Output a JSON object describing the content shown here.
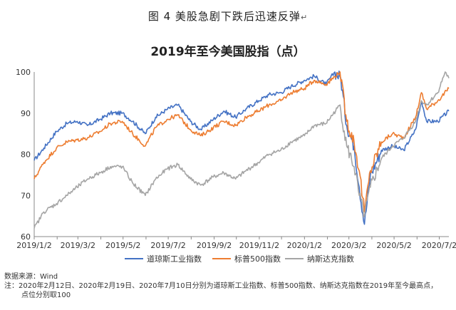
{
  "figure": {
    "title": "图 4 美股急剧下跌后迅速反弹",
    "title_mark": "↵"
  },
  "chart_data": {
    "type": "line",
    "title": "2019年至今美国股指（点）",
    "xlabel": "",
    "ylabel": "",
    "ylim": [
      60,
      100
    ],
    "yticks": [
      60,
      70,
      80,
      90,
      100
    ],
    "grid": false,
    "legend_position": "bottom",
    "x_ticks": [
      "2019/1/2",
      "2019/3/2",
      "2019/5/2",
      "2019/7/2",
      "2019/9/2",
      "2019/11/2",
      "2020/1/2",
      "2020/3/2",
      "2020/5/2",
      "2020/7/2"
    ],
    "x_months": [
      "2019/1",
      "2019/2",
      "2019/3",
      "2019/4",
      "2019/5",
      "2019/6",
      "2019/7",
      "2019/8",
      "2019/9",
      "2019/10",
      "2019/11",
      "2019/12",
      "2020/1",
      "2020/2",
      "2020/3",
      "2020/4",
      "2020/5",
      "2020/6",
      "2020/7"
    ],
    "series": [
      {
        "name": "道琼斯工业指数",
        "color": "#4472C4",
        "points": [
          [
            "2019-01-02",
            78.5
          ],
          [
            "2019-01-15",
            81.5
          ],
          [
            "2019-02-01",
            85.5
          ],
          [
            "2019-02-15",
            87.5
          ],
          [
            "2019-03-01",
            88
          ],
          [
            "2019-03-15",
            87
          ],
          [
            "2019-04-01",
            88.5
          ],
          [
            "2019-04-15",
            90
          ],
          [
            "2019-05-01",
            90
          ],
          [
            "2019-05-15",
            88
          ],
          [
            "2019-06-01",
            85
          ],
          [
            "2019-06-15",
            89
          ],
          [
            "2019-07-01",
            91
          ],
          [
            "2019-07-15",
            92
          ],
          [
            "2019-08-01",
            88
          ],
          [
            "2019-08-15",
            86
          ],
          [
            "2019-09-01",
            88.5
          ],
          [
            "2019-09-15",
            90.5
          ],
          [
            "2019-10-01",
            89
          ],
          [
            "2019-10-15",
            91
          ],
          [
            "2019-11-01",
            93
          ],
          [
            "2019-11-15",
            94.5
          ],
          [
            "2019-12-01",
            95
          ],
          [
            "2019-12-15",
            96.5
          ],
          [
            "2020-01-02",
            98
          ],
          [
            "2020-01-15",
            99
          ],
          [
            "2020-01-31",
            97
          ],
          [
            "2020-02-12",
            100
          ],
          [
            "2020-02-20",
            98.5
          ],
          [
            "2020-02-28",
            87
          ],
          [
            "2020-03-09",
            82
          ],
          [
            "2020-03-16",
            72
          ],
          [
            "2020-03-23",
            63
          ],
          [
            "2020-03-31",
            75
          ],
          [
            "2020-04-15",
            81
          ],
          [
            "2020-04-30",
            82
          ],
          [
            "2020-05-15",
            81
          ],
          [
            "2020-05-31",
            86
          ],
          [
            "2020-06-08",
            93
          ],
          [
            "2020-06-15",
            88
          ],
          [
            "2020-06-30",
            88
          ],
          [
            "2020-07-15",
            90.5
          ]
        ]
      },
      {
        "name": "标普500指数",
        "color": "#ED7D31",
        "points": [
          [
            "2019-01-02",
            74
          ],
          [
            "2019-01-15",
            78
          ],
          [
            "2019-02-01",
            81.5
          ],
          [
            "2019-02-15",
            83
          ],
          [
            "2019-03-01",
            83.5
          ],
          [
            "2019-03-15",
            84
          ],
          [
            "2019-04-01",
            85.5
          ],
          [
            "2019-04-15",
            87.5
          ],
          [
            "2019-05-01",
            88
          ],
          [
            "2019-05-15",
            85
          ],
          [
            "2019-06-01",
            82
          ],
          [
            "2019-06-15",
            86.5
          ],
          [
            "2019-07-01",
            88.5
          ],
          [
            "2019-07-15",
            89.5
          ],
          [
            "2019-08-01",
            86
          ],
          [
            "2019-08-15",
            84.5
          ],
          [
            "2019-09-01",
            86.5
          ],
          [
            "2019-09-15",
            88
          ],
          [
            "2019-10-01",
            87
          ],
          [
            "2019-10-15",
            89
          ],
          [
            "2019-11-01",
            90.5
          ],
          [
            "2019-11-15",
            92
          ],
          [
            "2019-12-01",
            93
          ],
          [
            "2019-12-15",
            95
          ],
          [
            "2020-01-02",
            96
          ],
          [
            "2020-01-15",
            98
          ],
          [
            "2020-01-31",
            97
          ],
          [
            "2020-02-19",
            100
          ],
          [
            "2020-02-28",
            88
          ],
          [
            "2020-03-09",
            83
          ],
          [
            "2020-03-16",
            76
          ],
          [
            "2020-03-23",
            66
          ],
          [
            "2020-03-31",
            76
          ],
          [
            "2020-04-15",
            83
          ],
          [
            "2020-04-30",
            85
          ],
          [
            "2020-05-15",
            84
          ],
          [
            "2020-05-31",
            89
          ],
          [
            "2020-06-08",
            95
          ],
          [
            "2020-06-15",
            91
          ],
          [
            "2020-06-30",
            93
          ],
          [
            "2020-07-15",
            96
          ]
        ]
      },
      {
        "name": "纳斯达克指数",
        "color": "#A5A5A5",
        "points": [
          [
            "2019-01-02",
            62
          ],
          [
            "2019-01-15",
            66
          ],
          [
            "2019-02-01",
            68
          ],
          [
            "2019-02-15",
            70
          ],
          [
            "2019-03-01",
            72
          ],
          [
            "2019-03-15",
            74
          ],
          [
            "2019-04-01",
            75.5
          ],
          [
            "2019-04-15",
            77
          ],
          [
            "2019-05-01",
            77
          ],
          [
            "2019-05-15",
            73
          ],
          [
            "2019-06-01",
            70
          ],
          [
            "2019-06-15",
            74
          ],
          [
            "2019-07-01",
            76.5
          ],
          [
            "2019-07-15",
            77.5
          ],
          [
            "2019-08-01",
            74
          ],
          [
            "2019-08-15",
            72.5
          ],
          [
            "2019-09-01",
            74.5
          ],
          [
            "2019-09-15",
            75.5
          ],
          [
            "2019-10-01",
            74
          ],
          [
            "2019-10-15",
            76
          ],
          [
            "2019-11-01",
            78
          ],
          [
            "2019-11-15",
            80
          ],
          [
            "2019-12-01",
            81
          ],
          [
            "2019-12-15",
            83
          ],
          [
            "2020-01-02",
            84.5
          ],
          [
            "2020-01-15",
            87
          ],
          [
            "2020-01-31",
            87.5
          ],
          [
            "2020-02-19",
            92
          ],
          [
            "2020-02-28",
            82
          ],
          [
            "2020-03-09",
            77
          ],
          [
            "2020-03-16",
            70
          ],
          [
            "2020-03-23",
            65
          ],
          [
            "2020-03-31",
            72
          ],
          [
            "2020-04-15",
            79
          ],
          [
            "2020-04-30",
            82
          ],
          [
            "2020-05-15",
            84
          ],
          [
            "2020-05-31",
            88
          ],
          [
            "2020-06-08",
            93
          ],
          [
            "2020-06-15",
            92
          ],
          [
            "2020-06-30",
            95
          ],
          [
            "2020-07-10",
            100
          ],
          [
            "2020-07-15",
            98.5
          ]
        ]
      }
    ]
  },
  "footer": {
    "source": "数据来源：Wind",
    "note_line1": "注：2020年2月12日、2020年2月19日、2020年7月10日分别为道琼斯工业指数、标普500指数、纳斯达克指数在2019年至今最高点，",
    "note_line2": "点位分别取100"
  }
}
